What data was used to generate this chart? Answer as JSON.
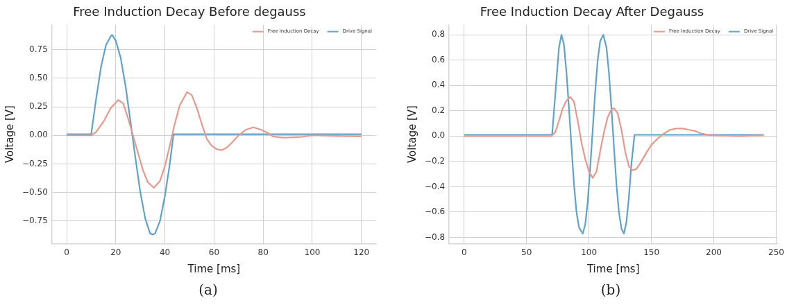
{
  "chart_data": [
    {
      "type": "line",
      "title": "Free Induction Decay Before degauss",
      "xlabel": "Time [ms]",
      "ylabel": "Voltage [V]",
      "annotations": [
        "(a)"
      ],
      "xlim": [
        -6,
        126
      ],
      "ylim": [
        -0.95,
        0.97
      ],
      "xticks": [
        0,
        20,
        40,
        60,
        80,
        100,
        120
      ],
      "yticks": [
        {
          "value": -0.75,
          "label": "−0.75"
        },
        {
          "value": -0.5,
          "label": "−0.50"
        },
        {
          "value": -0.25,
          "label": "−0.25"
        },
        {
          "value": 0,
          "label": "0.00"
        },
        0.25,
        {
          "value": 0.5,
          "label": "0.50"
        },
        0.75
      ],
      "grid": true,
      "legend": "top right",
      "marker": "none",
      "line_style": "solid",
      "series": [
        {
          "name": "Free Induction Decay",
          "color": "#e9988c",
          "x": [
            0,
            10,
            12,
            15,
            18,
            21,
            23,
            25,
            27,
            29,
            31,
            33,
            35.5,
            38,
            40,
            42,
            44,
            46,
            49,
            51,
            53,
            55,
            57,
            59,
            61,
            63,
            65,
            67,
            70,
            73,
            76,
            79,
            82,
            84,
            88,
            95,
            100,
            110,
            120
          ],
          "values": [
            0,
            0,
            0.03,
            0.12,
            0.24,
            0.31,
            0.28,
            0.15,
            0,
            -0.15,
            -0.3,
            -0.41,
            -0.46,
            -0.4,
            -0.27,
            -0.09,
            0.1,
            0.26,
            0.38,
            0.35,
            0.24,
            0.1,
            -0.03,
            -0.09,
            -0.12,
            -0.13,
            -0.11,
            -0.07,
            0,
            0.05,
            0.07,
            0.05,
            0.02,
            -0.01,
            -0.02,
            -0.015,
            0,
            -0.005,
            -0.01
          ]
        },
        {
          "name": "Drive Signal",
          "color": "#5fa2cb",
          "x": [
            0,
            10,
            12,
            14,
            16,
            18,
            18.5,
            20,
            22,
            24,
            26,
            28,
            30,
            32,
            34,
            35,
            36,
            38,
            40,
            42,
            43.5,
            120
          ],
          "values": [
            0.01,
            0.01,
            0.32,
            0.6,
            0.79,
            0.87,
            0.88,
            0.83,
            0.68,
            0.43,
            0.12,
            -0.2,
            -0.5,
            -0.73,
            -0.86,
            -0.87,
            -0.86,
            -0.75,
            -0.53,
            -0.25,
            0.01,
            0.01
          ]
        }
      ]
    },
    {
      "type": "line",
      "title": "Free Induction Decay After Degauss",
      "xlabel": "Time [ms]",
      "ylabel": "Voltage [V]",
      "annotations": [
        "(b)"
      ],
      "xlim": [
        -12,
        251
      ],
      "ylim": [
        -0.85,
        0.88
      ],
      "xticks": [
        0,
        50,
        100,
        150,
        200,
        250
      ],
      "yticks": [
        {
          "value": -0.8,
          "label": "−0.8"
        },
        {
          "value": -0.6,
          "label": "−0.6"
        },
        {
          "value": -0.4,
          "label": "−0.4"
        },
        {
          "value": -0.2,
          "label": "−0.2"
        },
        {
          "value": 0,
          "label": "0.0"
        },
        0.2,
        0.4,
        0.6,
        0.8
      ],
      "grid": true,
      "legend": "top right",
      "marker": "none",
      "line_style": "solid",
      "series": [
        {
          "name": "Free Induction Decay",
          "color": "#e9988c",
          "x": [
            0,
            70,
            73,
            76,
            79,
            82,
            85,
            88,
            91,
            94,
            97,
            100,
            103,
            106,
            109,
            112,
            115,
            118,
            120,
            123,
            126,
            129,
            132,
            135,
            138,
            142,
            146,
            150,
            155,
            160,
            165,
            170,
            175,
            180,
            185,
            190,
            195,
            200,
            220,
            240
          ],
          "values": [
            0,
            0,
            0.03,
            0.12,
            0.22,
            0.28,
            0.31,
            0.27,
            0.12,
            -0.05,
            -0.18,
            -0.28,
            -0.33,
            -0.28,
            -0.12,
            0.03,
            0.15,
            0.21,
            0.22,
            0.18,
            0.05,
            -0.12,
            -0.24,
            -0.27,
            -0.26,
            -0.2,
            -0.13,
            -0.07,
            -0.02,
            0.02,
            0.05,
            0.06,
            0.06,
            0.05,
            0.04,
            0.02,
            0.01,
            0.005,
            0,
            0.005
          ]
        },
        {
          "name": "Drive Signal",
          "color": "#5fa2cb",
          "x": [
            0,
            70.5,
            74,
            76,
            78,
            80,
            82,
            84,
            86,
            88,
            90,
            92,
            95,
            97,
            99,
            101,
            103,
            105,
            107,
            109,
            111.5,
            114,
            116,
            118,
            120,
            122,
            124,
            126,
            128,
            130,
            132,
            134,
            136.5,
            240
          ],
          "values": [
            0.01,
            0.01,
            0.45,
            0.7,
            0.8,
            0.72,
            0.5,
            0.22,
            -0.08,
            -0.38,
            -0.6,
            -0.72,
            -0.77,
            -0.7,
            -0.52,
            -0.25,
            0.05,
            0.35,
            0.6,
            0.75,
            0.8,
            0.7,
            0.5,
            0.22,
            -0.08,
            -0.38,
            -0.6,
            -0.73,
            -0.77,
            -0.68,
            -0.48,
            -0.22,
            0.01,
            0.01
          ]
        }
      ]
    }
  ]
}
